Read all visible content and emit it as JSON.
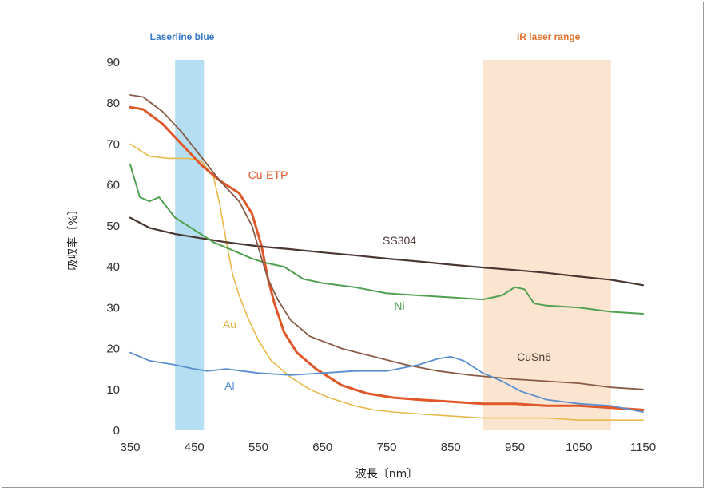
{
  "chart_data": {
    "type": "line",
    "xlabel": "波長〔nm〕",
    "ylabel": "吸収率〔%〕",
    "xlim": [
      350,
      1150
    ],
    "ylim": [
      0,
      90
    ],
    "xticks": [
      350,
      450,
      550,
      650,
      750,
      850,
      950,
      1050,
      1150
    ],
    "yticks": [
      0,
      10,
      20,
      30,
      40,
      50,
      60,
      70,
      80,
      90
    ],
    "grid": false,
    "bands": [
      {
        "name": "Laserline blue",
        "x": [
          420,
          465
        ],
        "color": "#a8d8f0"
      },
      {
        "name": "IR laser range",
        "x": [
          900,
          1100
        ],
        "color": "#fbdcc0"
      }
    ],
    "series": [
      {
        "name": "Au",
        "color": "#e8b84a",
        "x": [
          350,
          380,
          410,
          440,
          460,
          480,
          490,
          500,
          510,
          520,
          535,
          550,
          570,
          600,
          630,
          660,
          700,
          730,
          760,
          800,
          850,
          900,
          950,
          1000,
          1050,
          1100,
          1150
        ],
        "y": [
          70,
          67,
          66.5,
          66.5,
          66,
          62,
          55,
          46,
          38,
          33,
          27,
          22,
          17,
          13,
          10,
          8,
          6,
          5,
          4.5,
          4,
          3.5,
          3,
          3,
          3,
          2.5,
          2.5,
          2.5
        ]
      },
      {
        "name": "Cu-ETP",
        "color": "#e0582a",
        "x": [
          350,
          370,
          400,
          430,
          460,
          490,
          520,
          540,
          555,
          565,
          575,
          590,
          610,
          640,
          680,
          720,
          760,
          800,
          850,
          900,
          950,
          1000,
          1050,
          1100,
          1150
        ],
        "y": [
          79,
          78.5,
          75,
          70,
          65,
          61,
          58,
          53,
          45,
          37,
          31,
          24,
          19,
          15,
          11,
          9,
          8,
          7.5,
          7,
          6.5,
          6.5,
          6,
          6,
          5.5,
          5
        ]
      },
      {
        "name": "SS304",
        "color": "#4a3632",
        "x": [
          350,
          380,
          420,
          460,
          500,
          550,
          600,
          650,
          700,
          750,
          800,
          850,
          900,
          950,
          1000,
          1050,
          1100,
          1150
        ],
        "y": [
          52,
          49.5,
          48,
          47,
          46,
          45,
          44.3,
          43.5,
          42.8,
          42,
          41.3,
          40.5,
          39.8,
          39.2,
          38.5,
          37.6,
          36.8,
          35.5
        ]
      },
      {
        "name": "Ni",
        "color": "#52a052",
        "x": [
          350,
          365,
          380,
          395,
          420,
          450,
          480,
          510,
          540,
          560,
          590,
          620,
          650,
          700,
          750,
          800,
          850,
          900,
          930,
          950,
          965,
          980,
          1000,
          1050,
          1100,
          1150
        ],
        "y": [
          65,
          57,
          56,
          57,
          52,
          49,
          46,
          44,
          42,
          41,
          40,
          37,
          36,
          35,
          33.5,
          33,
          32.5,
          32,
          33,
          35,
          34.5,
          31,
          30.5,
          30,
          29,
          28.5
        ]
      },
      {
        "name": "CuSn6",
        "color": "#8a5a46",
        "x": [
          350,
          370,
          400,
          430,
          460,
          490,
          520,
          540,
          555,
          565,
          580,
          600,
          630,
          680,
          730,
          780,
          830,
          880,
          950,
          1000,
          1050,
          1100,
          1150
        ],
        "y": [
          82,
          81.5,
          78,
          73,
          67,
          61,
          56,
          50,
          42,
          37,
          32,
          27,
          23,
          20,
          18,
          16,
          14.5,
          13.5,
          12.5,
          12,
          11.5,
          10.5,
          10
        ]
      },
      {
        "name": "Al",
        "color": "#5b8fcf",
        "x": [
          350,
          380,
          420,
          450,
          470,
          500,
          550,
          600,
          650,
          700,
          750,
          800,
          830,
          850,
          870,
          900,
          930,
          960,
          1000,
          1050,
          1100,
          1150
        ],
        "y": [
          19,
          17,
          16,
          15,
          14.5,
          15,
          14,
          13.5,
          14,
          14.5,
          14.5,
          16,
          17.5,
          18,
          17,
          14,
          12,
          9.5,
          7.5,
          6.5,
          6,
          4.5
        ]
      }
    ],
    "labels": [
      {
        "series": "Cu-ETP",
        "text": "Cu-ETP",
        "x": 565,
        "y": 61.5
      },
      {
        "series": "SS304",
        "text": "SS304",
        "x": 770,
        "y": 45.5
      },
      {
        "series": "Ni",
        "text": "Ni",
        "x": 770,
        "y": 29.5
      },
      {
        "series": "Au",
        "text": "Au",
        "x": 505,
        "y": 25
      },
      {
        "series": "CuSn6",
        "text": "CuSn6",
        "x": 980,
        "y": 17
      },
      {
        "series": "Al",
        "text": "Al",
        "x": 505,
        "y": 10
      }
    ]
  }
}
